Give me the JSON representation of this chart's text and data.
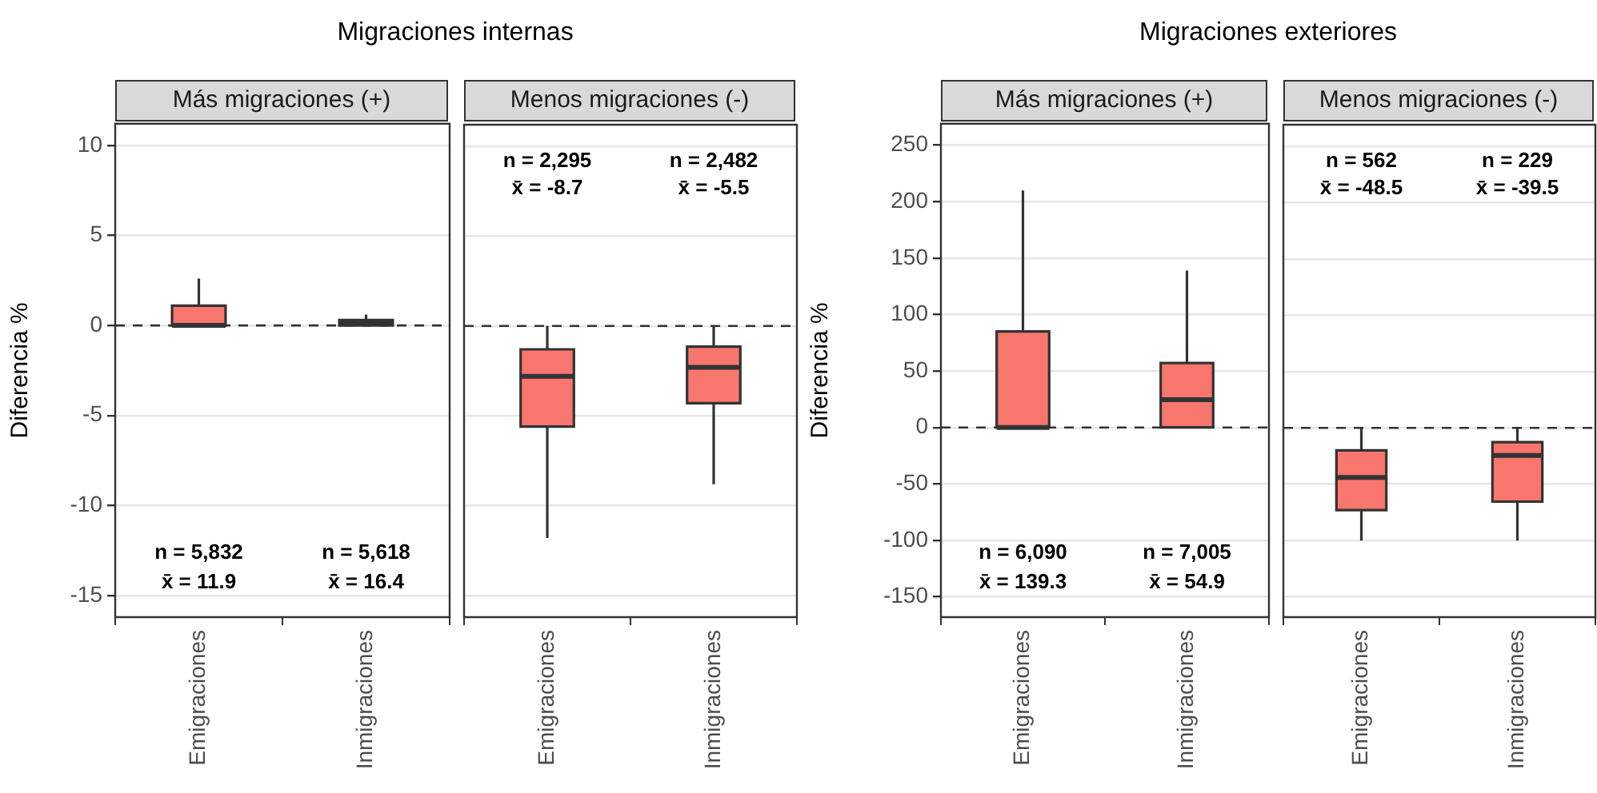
{
  "chart_data": [
    {
      "type": "box",
      "title": "Migraciones internas",
      "subtitle": "Más migraciones (+)",
      "ylabel": "Diferencia %",
      "categories": [
        "Emigraciones",
        "Inmigraciones"
      ],
      "series": [
        {
          "color": "#f8766d",
          "boxes": [
            {
              "low": 0,
              "q1": 0,
              "median": 0,
              "q3": 1.1,
              "high": 2.6
            },
            {
              "low": 0,
              "q1": 0,
              "median": 0.1,
              "q3": 0.3,
              "high": 0.6
            }
          ]
        }
      ],
      "ylim": [
        -16.2,
        11.2
      ],
      "yticks": [
        -15,
        -10,
        -5,
        0,
        5,
        10
      ],
      "grid": "y",
      "ref_lines": [
        {
          "axis": "y",
          "value": 0,
          "line_style": "dashed",
          "color": "#333333"
        }
      ],
      "annotations": [
        "n = 5,832",
        "x̄ = 11.9",
        "n = 5,618",
        "x̄ = 16.4"
      ]
    },
    {
      "type": "box",
      "subtitle": "Menos migraciones (-)",
      "categories": [
        "Emigraciones",
        "Inmigraciones"
      ],
      "series": [
        {
          "color": "#f8766d",
          "boxes": [
            {
              "low": -11.8,
              "q1": -5.6,
              "median": -2.8,
              "q3": -1.3,
              "high": 0
            },
            {
              "low": -8.8,
              "q1": -4.3,
              "median": -2.3,
              "q3": -1.15,
              "high": 0
            }
          ]
        }
      ],
      "ylim": [
        -16.2,
        11.2
      ],
      "yticks": [
        -15,
        -10,
        -5,
        0,
        5,
        10
      ],
      "grid": "y",
      "tick_labels": "x",
      "ref_lines": [
        {
          "axis": "y",
          "value": 0,
          "line_style": "dashed",
          "color": "#333333"
        }
      ],
      "annotations": [
        "n = 2,295",
        "x̄ = -8.7",
        "n = 2,482",
        "x̄ = -5.5"
      ]
    },
    {
      "type": "box",
      "title": "Migraciones exteriores",
      "subtitle": "Más migraciones (+)",
      "ylabel": "Diferencia %",
      "categories": [
        "Emigraciones",
        "Inmigraciones"
      ],
      "series": [
        {
          "color": "#f8766d",
          "boxes": [
            {
              "low": 0,
              "q1": 0,
              "median": 0,
              "q3": 85,
              "high": 210
            },
            {
              "low": 0,
              "q1": 0,
              "median": 24.5,
              "q3": 57,
              "high": 139
            }
          ]
        }
      ],
      "ylim": [
        -168,
        269
      ],
      "yticks": [
        -150,
        -100,
        -50,
        0,
        50,
        100,
        150,
        200,
        250
      ],
      "grid": "y",
      "ref_lines": [
        {
          "axis": "y",
          "value": 0,
          "line_style": "dashed",
          "color": "#333333"
        }
      ],
      "annotations": [
        "n = 6,090",
        "x̄ = 139.3",
        "n = 7,005",
        "x̄ = 54.9"
      ]
    },
    {
      "type": "box",
      "subtitle": "Menos migraciones (-)",
      "categories": [
        "Emigraciones",
        "Inmigraciones"
      ],
      "series": [
        {
          "color": "#f8766d",
          "boxes": [
            {
              "low": -100,
              "q1": -73,
              "median": -44,
              "q3": -20,
              "high": 0
            },
            {
              "low": -100,
              "q1": -65.5,
              "median": -24.5,
              "q3": -12.7,
              "high": 0
            }
          ]
        }
      ],
      "ylim": [
        -168,
        269
      ],
      "yticks": [
        -150,
        -100,
        -50,
        0,
        50,
        100,
        150,
        200,
        250
      ],
      "grid": "y",
      "tick_labels": "x",
      "ref_lines": [
        {
          "axis": "y",
          "value": 0,
          "line_style": "dashed",
          "color": "#333333"
        }
      ],
      "annotations": [
        "n = 562",
        "x̄ = -48.5",
        "n = 229",
        "x̄ = -39.5"
      ]
    }
  ]
}
